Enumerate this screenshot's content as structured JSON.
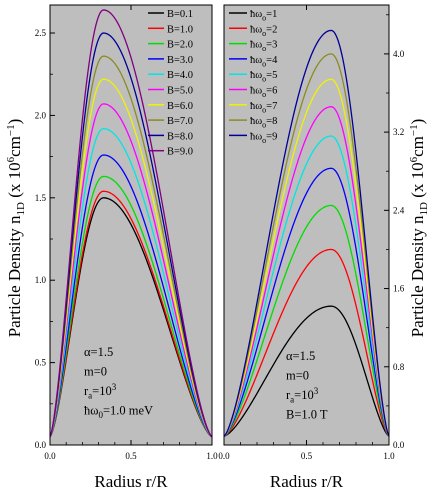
{
  "y_label_left": "Particle Density n",
  "y_label_left_sub": "1D",
  "y_label_left_unit": "(x 10",
  "y_label_left_exp": "6",
  "y_label_left_unit2": "cm",
  "y_label_left_exp2": "−1",
  "y_label_left_close": ")",
  "y_label_right": "Particle Density n",
  "y_label_right_sub": "1D",
  "y_label_right_unit": "(x 10",
  "y_label_right_exp": "6",
  "y_label_right_unit2": "cm",
  "y_label_right_exp2": "−1",
  "y_label_right_close": ")",
  "chart_data": [
    {
      "type": "line",
      "panel": "left",
      "xlabel": "Radius r/R",
      "xlim": [
        0,
        1
      ],
      "ylim": [
        0,
        2.67
      ],
      "x_ticks": [
        "0.0",
        "0.5",
        "1.0"
      ],
      "x_tick_values": [
        0,
        0.5,
        1.0
      ],
      "y_ticks": [
        "0.0",
        "0.5",
        "1.0",
        "1.5",
        "2.0",
        "2.5"
      ],
      "y_tick_values": [
        0,
        0.5,
        1.0,
        1.5,
        2.0,
        2.5
      ],
      "curve_peak_x": 0.33,
      "curve_edge_value": 0.05,
      "grid": false,
      "legend_position": "top-right",
      "background": "#bebebe",
      "series": [
        {
          "name": "B=0.1",
          "color": "#000000",
          "peak": 1.5
        },
        {
          "name": "B=1.0",
          "color": "#ff0000",
          "peak": 1.54
        },
        {
          "name": "B=2.0",
          "color": "#00dd00",
          "peak": 1.63
        },
        {
          "name": "B=3.0",
          "color": "#0000ff",
          "peak": 1.76
        },
        {
          "name": "B=4.0",
          "color": "#00e5e5",
          "peak": 1.92
        },
        {
          "name": "B=5.0",
          "color": "#ff00ff",
          "peak": 2.07
        },
        {
          "name": "B=6.0",
          "color": "#f2f200",
          "peak": 2.22
        },
        {
          "name": "B=7.0",
          "color": "#8b8b22",
          "peak": 2.36
        },
        {
          "name": "B=8.0",
          "color": "#000099",
          "peak": 2.5
        },
        {
          "name": "B=9.0",
          "color": "#800080",
          "peak": 2.64
        }
      ],
      "annotations": [
        {
          "text": "α=1.5"
        },
        {
          "text": "m=0"
        },
        {
          "text": "r",
          "sub": "a",
          "rest": "=10",
          "sup": "3"
        },
        {
          "text": "ħω",
          "sub": "0",
          "rest": "=1.0 meV"
        }
      ]
    },
    {
      "type": "line",
      "panel": "right",
      "xlabel": "Radius r/R",
      "xlim": [
        0,
        1
      ],
      "ylim": [
        0,
        4.5
      ],
      "x_ticks": [
        "0.0",
        "0.5",
        "1.0"
      ],
      "x_tick_values": [
        0,
        0.5,
        1.0
      ],
      "y_ticks": [
        "0.0",
        "0.8",
        "1.6",
        "2.4",
        "3.2",
        "4.0"
      ],
      "y_tick_values": [
        0,
        0.8,
        1.6,
        2.4,
        3.2,
        4.0
      ],
      "y_axis_side": "right",
      "curve_peak_x": 0.65,
      "curve_edge_value": 0.09,
      "grid": false,
      "legend_position": "top-left",
      "background": "#bebebe",
      "series": [
        {
          "name": "ħω",
          "name_sub": "o",
          "name_rest": "=1",
          "color": "#000000",
          "peak": 1.42
        },
        {
          "name": "ħω",
          "name_sub": "o",
          "name_rest": "=2",
          "color": "#ff0000",
          "peak": 2.0
        },
        {
          "name": "ħω",
          "name_sub": "o",
          "name_rest": "=3",
          "color": "#00dd00",
          "peak": 2.45
        },
        {
          "name": "ħω",
          "name_sub": "o",
          "name_rest": "=4",
          "color": "#0000ff",
          "peak": 2.83
        },
        {
          "name": "ħω",
          "name_sub": "o",
          "name_rest": "=5",
          "color": "#00e5e5",
          "peak": 3.16
        },
        {
          "name": "ħω",
          "name_sub": "o",
          "name_rest": "=6",
          "color": "#ff00ff",
          "peak": 3.46
        },
        {
          "name": "ħω",
          "name_sub": "o",
          "name_rest": "=7",
          "color": "#f2f200",
          "peak": 3.74
        },
        {
          "name": "ħω",
          "name_sub": "o",
          "name_rest": "=8",
          "color": "#8b8b22",
          "peak": 4.0
        },
        {
          "name": "ħω",
          "name_sub": "o",
          "name_rest": "=9",
          "color": "#000099",
          "peak": 4.24
        }
      ],
      "annotations": [
        {
          "text": "α=1.5"
        },
        {
          "text": "m=0"
        },
        {
          "text": "r",
          "sub": "a",
          "rest": "=10",
          "sup": "3"
        },
        {
          "text": "B=1.0 T"
        }
      ]
    }
  ]
}
